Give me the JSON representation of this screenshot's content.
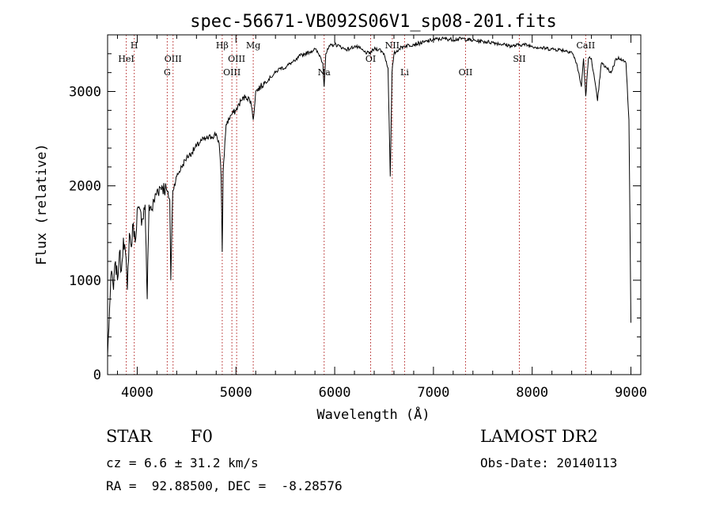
{
  "chart_data": {
    "type": "line",
    "title": "spec-56671-VB092S06V1_sp08-201.fits",
    "xlabel": "Wavelength (Å)",
    "ylabel": "Flux (relative)",
    "xlim": [
      3700,
      9100
    ],
    "ylim": [
      0,
      3600
    ],
    "x_ticks": [
      4000,
      5000,
      6000,
      7000,
      8000,
      9000
    ],
    "y_ticks": [
      0,
      1000,
      2000,
      3000
    ],
    "grid": false,
    "line_color": "#000000",
    "marker_color": "#b22222",
    "series": [
      {
        "x": [
          3700,
          3720,
          3740,
          3760,
          3780,
          3800,
          3820,
          3840,
          3860,
          3880,
          3900,
          3920,
          3940,
          3960,
          3980,
          4000,
          4050,
          4080,
          4101,
          4120,
          4150,
          4200,
          4250,
          4300,
          4330,
          4340,
          4360,
          4400,
          4450,
          4500,
          4550,
          4600,
          4650,
          4700,
          4750,
          4800,
          4830,
          4850,
          4861,
          4870,
          4900,
          4950,
          5000,
          5050,
          5100,
          5150,
          5175,
          5200,
          5250,
          5300,
          5350,
          5400,
          5450,
          5500,
          5550,
          5600,
          5650,
          5700,
          5750,
          5800,
          5850,
          5880,
          5893,
          5910,
          5950,
          6000,
          6050,
          6100,
          6150,
          6200,
          6250,
          6300,
          6350,
          6400,
          6450,
          6500,
          6540,
          6563,
          6580,
          6600,
          6650,
          6700,
          6800,
          6900,
          7000,
          7100,
          7200,
          7300,
          7400,
          7500,
          7600,
          7700,
          7800,
          7900,
          8000,
          8100,
          8200,
          8300,
          8400,
          8450,
          8498,
          8520,
          8542,
          8570,
          8600,
          8662,
          8700,
          8750,
          8800,
          8850,
          8900,
          8950,
          8980,
          9000
        ],
        "y": [
          200,
          700,
          1100,
          900,
          1200,
          1000,
          1300,
          1100,
          1450,
          1300,
          900,
          1500,
          1350,
          1600,
          1400,
          1750,
          1650,
          1800,
          800,
          1800,
          1750,
          1950,
          2000,
          1950,
          1850,
          1000,
          1950,
          2100,
          2200,
          2300,
          2350,
          2420,
          2480,
          2500,
          2520,
          2550,
          2450,
          2100,
          1300,
          2150,
          2650,
          2750,
          2800,
          2900,
          2950,
          2900,
          2700,
          3000,
          3050,
          3100,
          3150,
          3200,
          3250,
          3250,
          3300,
          3320,
          3380,
          3400,
          3420,
          3450,
          3380,
          3300,
          3050,
          3400,
          3480,
          3500,
          3480,
          3450,
          3450,
          3480,
          3460,
          3420,
          3400,
          3450,
          3450,
          3400,
          3250,
          2100,
          3200,
          3400,
          3450,
          3480,
          3500,
          3520,
          3550,
          3560,
          3550,
          3560,
          3540,
          3530,
          3520,
          3500,
          3480,
          3500,
          3480,
          3460,
          3450,
          3440,
          3420,
          3300,
          3050,
          3350,
          2950,
          3350,
          3350,
          2900,
          3300,
          3250,
          3200,
          3350,
          3350,
          3300,
          2700,
          550
        ]
      }
    ],
    "line_markers": [
      {
        "label": "HeI",
        "x": 3889,
        "row": 2
      },
      {
        "label": "H",
        "x": 3970,
        "row": 1
      },
      {
        "label": "G",
        "x": 4304,
        "row": 3
      },
      {
        "label": "OIII",
        "x": 4363,
        "row": 2
      },
      {
        "label": "Hβ",
        "x": 4861,
        "row": 1
      },
      {
        "label": "OIII",
        "x": 4959,
        "row": 3
      },
      {
        "label": "OIII",
        "x": 5007,
        "row": 2
      },
      {
        "label": "Mg",
        "x": 5175,
        "row": 1
      },
      {
        "label": "Na",
        "x": 5893,
        "row": 3
      },
      {
        "label": "OI",
        "x": 6364,
        "row": 2
      },
      {
        "label": "NII",
        "x": 6583,
        "row": 1
      },
      {
        "label": "Li",
        "x": 6708,
        "row": 3
      },
      {
        "label": "OII",
        "x": 7325,
        "row": 3
      },
      {
        "label": "SII",
        "x": 7870,
        "row": 2
      },
      {
        "label": "CaII",
        "x": 8542,
        "row": 1
      }
    ]
  },
  "info": {
    "object_class": "STAR",
    "subclass": "F0",
    "survey": "LAMOST DR2",
    "redshift": "cz = 6.6 ± 31.2 km/s",
    "obs_date": "Obs-Date: 20140113",
    "coordinates": "RA =  92.88500, DEC =  -8.28576"
  }
}
